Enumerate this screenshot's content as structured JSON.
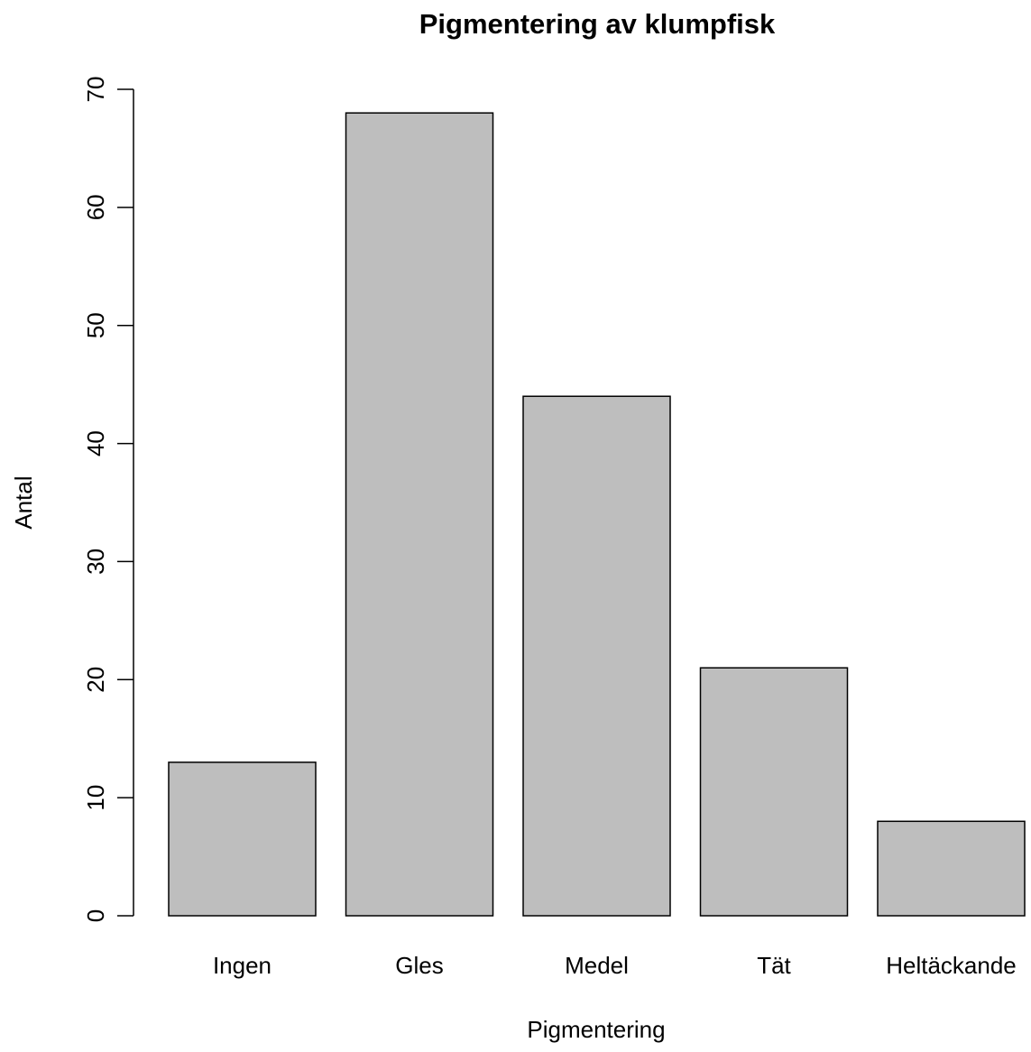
{
  "chart_data": {
    "type": "bar",
    "title": "Pigmentering av klumpfisk",
    "xlabel": "Pigmentering",
    "ylabel": "Antal",
    "categories": [
      "Ingen",
      "Gles",
      "Medel",
      "Tät",
      "Heltäckande"
    ],
    "values": [
      13,
      68,
      44,
      21,
      8
    ],
    "ylim": [
      0,
      70
    ],
    "yticks": [
      "0",
      "10",
      "20",
      "30",
      "40",
      "50",
      "60",
      "70"
    ],
    "grid": false,
    "legend": "none",
    "bar_color": "#bebebe",
    "bar_border_color": "#000000"
  }
}
